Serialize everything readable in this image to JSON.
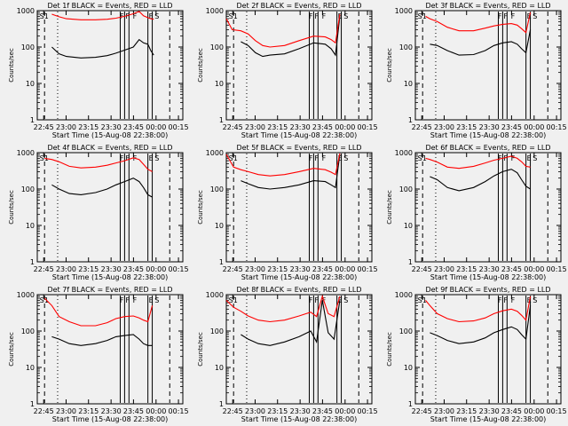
{
  "figure": {
    "background": "#f0f0f0",
    "events_color": "#000000",
    "lld_color": "#ff0000"
  },
  "chart_data": [
    {
      "type": "line",
      "title": "Det 1f BLACK = Events, RED = LLD",
      "xlabel": "Start Time (15-Aug-08 22:38:00)",
      "ylabel": "Counts/sec",
      "yscale": "log",
      "ylim": [
        1,
        1000
      ],
      "xlim": [
        0,
        100
      ],
      "xtick_labels": [
        "22:45",
        "23:00",
        "23:15",
        "23:30",
        "23:45",
        "00:00",
        "00:15"
      ],
      "ytick_labels": [
        "1",
        "10",
        "100",
        "1000"
      ],
      "annotations": [
        "S1",
        "F",
        "F",
        "F",
        "E",
        "S"
      ],
      "x": [
        7,
        10,
        15,
        20,
        30,
        40,
        48,
        54,
        60,
        66,
        70,
        73,
        76,
        78,
        80
      ],
      "series": [
        {
          "name": "Events",
          "values": [
            null,
            100,
            65,
            55,
            50,
            52,
            58,
            68,
            82,
            100,
            160,
            130,
            120,
            80,
            60
          ]
        },
        {
          "name": "LLD",
          "values": [
            null,
            800,
            680,
            600,
            560,
            560,
            580,
            620,
            700,
            820,
            950,
            720,
            640,
            600,
            580
          ]
        }
      ]
    },
    {
      "type": "line",
      "title": "Det 2f BLACK = Events, RED = LLD",
      "xlabel": "Start Time (15-Aug-08 22:38:00)",
      "ylabel": "Counts/sec",
      "yscale": "log",
      "ylim": [
        1,
        1000
      ],
      "xlim": [
        0,
        100
      ],
      "xtick_labels": [
        "22:45",
        "23:00",
        "23:15",
        "23:30",
        "23:45",
        "00:00",
        "00:15"
      ],
      "ytick_labels": [
        "1",
        "10",
        "100",
        "1000"
      ],
      "annotations": [
        "S1",
        "F",
        "F",
        "F",
        "E",
        "S"
      ],
      "x": [
        0,
        4,
        10,
        15,
        20,
        25,
        30,
        40,
        50,
        60,
        68,
        72,
        75,
        78
      ],
      "series": [
        {
          "name": "Events",
          "values": [
            null,
            null,
            140,
            110,
            70,
            55,
            60,
            65,
            90,
            130,
            120,
            90,
            60,
            700
          ]
        },
        {
          "name": "LLD",
          "values": [
            600,
            300,
            280,
            230,
            150,
            110,
            100,
            110,
            150,
            200,
            190,
            160,
            130,
            800
          ]
        }
      ]
    },
    {
      "type": "line",
      "title": "Det 3f BLACK = Events, RED = LLD",
      "xlabel": "Start Time (15-Aug-08 22:38:00)",
      "ylabel": "Counts/sec",
      "yscale": "log",
      "ylim": [
        1,
        1000
      ],
      "xlim": [
        0,
        100
      ],
      "xtick_labels": [
        "22:45",
        "23:00",
        "23:15",
        "23:30",
        "23:45",
        "00:00",
        "00:15"
      ],
      "ytick_labels": [
        "1",
        "10",
        "100",
        "1000"
      ],
      "annotations": [
        "S1",
        "F",
        "F",
        "F",
        "E",
        "S"
      ],
      "x": [
        7,
        10,
        15,
        22,
        30,
        40,
        48,
        54,
        60,
        66,
        70,
        73,
        76,
        79
      ],
      "series": [
        {
          "name": "Events",
          "values": [
            null,
            120,
            110,
            80,
            60,
            62,
            80,
            110,
            130,
            140,
            120,
            90,
            70,
            300
          ]
        },
        {
          "name": "LLD",
          "values": [
            700,
            600,
            500,
            350,
            280,
            280,
            330,
            380,
            420,
            440,
            400,
            320,
            250,
            900
          ]
        }
      ]
    },
    {
      "type": "line",
      "title": "Det 4f BLACK = Events, RED = LLD",
      "xlabel": "Start Time (15-Aug-08 22:38:00)",
      "ylabel": "Counts/sec",
      "yscale": "log",
      "ylim": [
        1,
        1000
      ],
      "xlim": [
        0,
        100
      ],
      "xtick_labels": [
        "22:45",
        "23:00",
        "23:15",
        "23:30",
        "23:45",
        "00:00",
        "00:15"
      ],
      "ytick_labels": [
        "1",
        "10",
        "100",
        "1000"
      ],
      "annotations": [
        "S1",
        "F",
        "F",
        "F",
        "E",
        "S"
      ],
      "x": [
        5,
        10,
        15,
        22,
        30,
        40,
        48,
        54,
        60,
        66,
        70,
        73,
        76,
        79
      ],
      "series": [
        {
          "name": "Events",
          "values": [
            null,
            130,
            100,
            75,
            70,
            80,
            100,
            130,
            160,
            200,
            160,
            110,
            70,
            60
          ]
        },
        {
          "name": "LLD",
          "values": [
            700,
            650,
            560,
            420,
            380,
            400,
            450,
            520,
            600,
            720,
            650,
            480,
            350,
            300
          ]
        }
      ]
    },
    {
      "type": "line",
      "title": "Det 5f BLACK = Events, RED = LLD",
      "xlabel": "Start Time (15-Aug-08 22:38:00)",
      "ylabel": "Counts/sec",
      "yscale": "log",
      "ylim": [
        1,
        1000
      ],
      "xlim": [
        0,
        100
      ],
      "xtick_labels": [
        "22:45",
        "23:00",
        "23:15",
        "23:30",
        "23:45",
        "00:00",
        "00:15"
      ],
      "ytick_labels": [
        "1",
        "10",
        "100",
        "1000"
      ],
      "annotations": [
        "S1",
        "F",
        "F",
        "F",
        "E",
        "S"
      ],
      "x": [
        0,
        5,
        10,
        15,
        22,
        30,
        40,
        50,
        60,
        68,
        72,
        75,
        78
      ],
      "series": [
        {
          "name": "Events",
          "values": [
            null,
            null,
            170,
            140,
            110,
            100,
            110,
            130,
            170,
            160,
            130,
            110,
            900
          ]
        },
        {
          "name": "LLD",
          "values": [
            900,
            400,
            340,
            300,
            250,
            230,
            250,
            300,
            370,
            340,
            290,
            250,
            950
          ]
        }
      ]
    },
    {
      "type": "line",
      "title": "Det 6f BLACK = Events, RED = LLD",
      "xlabel": "Start Time (15-Aug-08 22:38:00)",
      "ylabel": "Counts/sec",
      "yscale": "log",
      "ylim": [
        1,
        1000
      ],
      "xlim": [
        0,
        100
      ],
      "xtick_labels": [
        "22:45",
        "23:00",
        "23:15",
        "23:30",
        "23:45",
        "00:00",
        "00:15"
      ],
      "ytick_labels": [
        "1",
        "10",
        "100",
        "1000"
      ],
      "annotations": [
        "S1",
        "F",
        "F",
        "F",
        "E",
        "S"
      ],
      "x": [
        7,
        10,
        15,
        22,
        30,
        40,
        48,
        54,
        60,
        66,
        70,
        73,
        76,
        79
      ],
      "series": [
        {
          "name": "Events",
          "values": [
            null,
            220,
            180,
            110,
            90,
            110,
            160,
            230,
            300,
            350,
            280,
            180,
            120,
            100
          ]
        },
        {
          "name": "LLD",
          "values": [
            700,
            650,
            550,
            400,
            370,
            420,
            520,
            620,
            700,
            800,
            700,
            560,
            420,
            400
          ]
        }
      ]
    },
    {
      "type": "line",
      "title": "Det 7f BLACK = Events, RED = LLD",
      "xlabel": "Start Time (15-Aug-08 22:38:00)",
      "ylabel": "Counts/sec",
      "yscale": "log",
      "ylim": [
        1,
        1000
      ],
      "xlim": [
        0,
        100
      ],
      "xtick_labels": [
        "22:45",
        "23:00",
        "23:15",
        "23:30",
        "23:45",
        "00:00",
        "00:15"
      ],
      "ytick_labels": [
        "1",
        "10",
        "100",
        "1000"
      ],
      "annotations": [
        "S1",
        "F",
        "F",
        "F",
        "E",
        "S"
      ],
      "x": [
        5,
        10,
        15,
        22,
        30,
        40,
        48,
        54,
        60,
        66,
        70,
        73,
        76,
        79
      ],
      "series": [
        {
          "name": "Events",
          "values": [
            null,
            70,
            60,
            45,
            40,
            45,
            55,
            70,
            75,
            80,
            60,
            45,
            40,
            40
          ]
        },
        {
          "name": "LLD",
          "values": [
            800,
            500,
            250,
            180,
            140,
            140,
            170,
            220,
            250,
            260,
            230,
            200,
            180,
            500
          ]
        }
      ]
    },
    {
      "type": "line",
      "title": "Det 8f BLACK = Events, RED = LLD",
      "xlabel": "Start Time (15-Aug-08 22:38:00)",
      "ylabel": "Counts/sec",
      "yscale": "log",
      "ylim": [
        1,
        1000
      ],
      "xlim": [
        0,
        100
      ],
      "xtick_labels": [
        "22:45",
        "23:00",
        "23:15",
        "23:30",
        "23:45",
        "00:00",
        "00:15"
      ],
      "ytick_labels": [
        "1",
        "10",
        "100",
        "1000"
      ],
      "annotations": [
        "S1",
        "F",
        "F",
        "F",
        "E",
        "S"
      ],
      "x": [
        0,
        5,
        10,
        15,
        22,
        30,
        40,
        50,
        58,
        62,
        66,
        70,
        74,
        78
      ],
      "series": [
        {
          "name": "Events",
          "values": [
            null,
            null,
            80,
            60,
            45,
            40,
            50,
            70,
            100,
            50,
            700,
            90,
            60,
            700
          ]
        },
        {
          "name": "LLD",
          "values": [
            700,
            450,
            350,
            260,
            200,
            180,
            200,
            260,
            330,
            250,
            900,
            300,
            250,
            900
          ]
        }
      ]
    },
    {
      "type": "line",
      "title": "Det 9f BLACK = Events, RED = LLD",
      "xlabel": "Start Time (15-Aug-08 22:38:00)",
      "ylabel": "Counts/sec",
      "yscale": "log",
      "ylim": [
        1,
        1000
      ],
      "xlim": [
        0,
        100
      ],
      "xtick_labels": [
        "22:45",
        "23:00",
        "23:15",
        "23:30",
        "23:45",
        "00:00",
        "00:15"
      ],
      "ytick_labels": [
        "1",
        "10",
        "100",
        "1000"
      ],
      "annotations": [
        "S1",
        "F",
        "F",
        "F",
        "E",
        "S"
      ],
      "x": [
        7,
        10,
        15,
        22,
        30,
        40,
        48,
        54,
        60,
        66,
        70,
        73,
        76,
        79
      ],
      "series": [
        {
          "name": "Events",
          "values": [
            null,
            90,
            75,
            55,
            45,
            50,
            65,
            90,
            110,
            130,
            110,
            80,
            60,
            500
          ]
        },
        {
          "name": "LLD",
          "values": [
            700,
            500,
            300,
            220,
            180,
            190,
            230,
            300,
            360,
            400,
            350,
            270,
            200,
            900
          ]
        }
      ]
    }
  ]
}
